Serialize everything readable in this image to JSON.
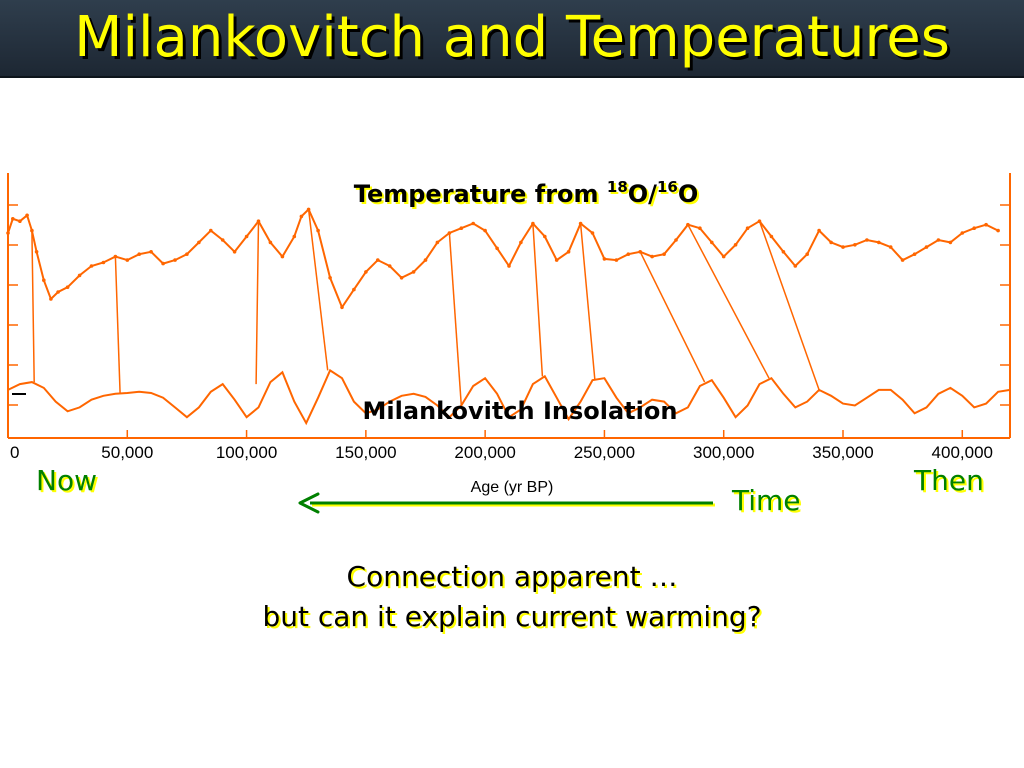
{
  "slide": {
    "title": "Milankovitch and Temperatures",
    "now_label": "Now",
    "then_label": "Then",
    "time_label": "Time",
    "caption_line1": "Connection apparent …",
    "caption_line2": "but can it explain current warming?"
  },
  "chart_data": {
    "type": "line",
    "title_parts": {
      "prefix": "Temperature from ",
      "sup1": "18",
      "mid": "O/",
      "sup2": "16",
      "suffix": "O"
    },
    "lower_label": "Milankovitch Insolation",
    "xlabel": "Age (yr BP)",
    "xlim": [
      0,
      420000
    ],
    "x_ticks": [
      0,
      50000,
      100000,
      150000,
      200000,
      250000,
      300000,
      350000,
      400000
    ],
    "x_tick_labels": [
      "0",
      "50,000",
      "100,000",
      "150,000",
      "200,000",
      "250,000",
      "300,000",
      "350,000",
      "400,000"
    ],
    "series_color": "#ff6600",
    "series": [
      {
        "values": [
          [
            0,
            0.78
          ],
          [
            2000,
            0.9
          ],
          [
            5000,
            0.88
          ],
          [
            8000,
            0.93
          ],
          [
            10000,
            0.8
          ],
          [
            12000,
            0.62
          ],
          [
            15000,
            0.38
          ],
          [
            18000,
            0.22
          ],
          [
            21000,
            0.28
          ],
          [
            25000,
            0.32
          ],
          [
            30000,
            0.42
          ],
          [
            35000,
            0.5
          ],
          [
            40000,
            0.53
          ],
          [
            45000,
            0.58
          ],
          [
            50000,
            0.55
          ],
          [
            55000,
            0.6
          ],
          [
            60000,
            0.62
          ],
          [
            65000,
            0.52
          ],
          [
            70000,
            0.55
          ],
          [
            75000,
            0.6
          ],
          [
            80000,
            0.7
          ],
          [
            85000,
            0.8
          ],
          [
            90000,
            0.72
          ],
          [
            95000,
            0.62
          ],
          [
            100000,
            0.75
          ],
          [
            105000,
            0.88
          ],
          [
            110000,
            0.7
          ],
          [
            115000,
            0.58
          ],
          [
            120000,
            0.75
          ],
          [
            123000,
            0.92
          ],
          [
            126000,
            0.98
          ],
          [
            130000,
            0.8
          ],
          [
            135000,
            0.4
          ],
          [
            140000,
            0.15
          ],
          [
            145000,
            0.3
          ],
          [
            150000,
            0.45
          ],
          [
            155000,
            0.55
          ],
          [
            160000,
            0.5
          ],
          [
            165000,
            0.4
          ],
          [
            170000,
            0.45
          ],
          [
            175000,
            0.55
          ],
          [
            180000,
            0.7
          ],
          [
            185000,
            0.78
          ],
          [
            190000,
            0.82
          ],
          [
            195000,
            0.86
          ],
          [
            200000,
            0.8
          ],
          [
            205000,
            0.65
          ],
          [
            210000,
            0.5
          ],
          [
            215000,
            0.7
          ],
          [
            220000,
            0.86
          ],
          [
            225000,
            0.75
          ],
          [
            230000,
            0.55
          ],
          [
            235000,
            0.62
          ],
          [
            240000,
            0.86
          ],
          [
            245000,
            0.78
          ],
          [
            250000,
            0.56
          ],
          [
            255000,
            0.55
          ],
          [
            260000,
            0.6
          ],
          [
            265000,
            0.62
          ],
          [
            270000,
            0.58
          ],
          [
            275000,
            0.6
          ],
          [
            280000,
            0.72
          ],
          [
            285000,
            0.85
          ],
          [
            290000,
            0.82
          ],
          [
            295000,
            0.7
          ],
          [
            300000,
            0.58
          ],
          [
            305000,
            0.68
          ],
          [
            310000,
            0.82
          ],
          [
            315000,
            0.88
          ],
          [
            320000,
            0.75
          ],
          [
            325000,
            0.62
          ],
          [
            330000,
            0.5
          ],
          [
            335000,
            0.6
          ],
          [
            340000,
            0.8
          ],
          [
            345000,
            0.7
          ],
          [
            350000,
            0.66
          ],
          [
            355000,
            0.68
          ],
          [
            360000,
            0.72
          ],
          [
            365000,
            0.7
          ],
          [
            370000,
            0.66
          ],
          [
            375000,
            0.55
          ],
          [
            380000,
            0.6
          ],
          [
            385000,
            0.66
          ],
          [
            390000,
            0.72
          ],
          [
            395000,
            0.7
          ],
          [
            400000,
            0.78
          ],
          [
            405000,
            0.82
          ],
          [
            410000,
            0.85
          ],
          [
            415000,
            0.8
          ]
        ]
      },
      {
        "values": [
          [
            0,
            -0.1
          ],
          [
            5000,
            0.05
          ],
          [
            10000,
            0.1
          ],
          [
            15000,
            -0.05
          ],
          [
            20000,
            -0.4
          ],
          [
            25000,
            -0.65
          ],
          [
            30000,
            -0.55
          ],
          [
            35000,
            -0.35
          ],
          [
            40000,
            -0.25
          ],
          [
            45000,
            -0.2
          ],
          [
            50000,
            -0.18
          ],
          [
            55000,
            -0.15
          ],
          [
            60000,
            -0.18
          ],
          [
            65000,
            -0.3
          ],
          [
            70000,
            -0.55
          ],
          [
            75000,
            -0.8
          ],
          [
            80000,
            -0.55
          ],
          [
            85000,
            -0.15
          ],
          [
            90000,
            0.05
          ],
          [
            95000,
            -0.35
          ],
          [
            100000,
            -0.8
          ],
          [
            105000,
            -0.55
          ],
          [
            110000,
            0.1
          ],
          [
            115000,
            0.35
          ],
          [
            120000,
            -0.4
          ],
          [
            125000,
            -0.95
          ],
          [
            130000,
            -0.3
          ],
          [
            135000,
            0.4
          ],
          [
            140000,
            0.2
          ],
          [
            145000,
            -0.4
          ],
          [
            150000,
            -0.7
          ],
          [
            155000,
            -0.6
          ],
          [
            160000,
            -0.4
          ],
          [
            165000,
            -0.25
          ],
          [
            170000,
            -0.2
          ],
          [
            175000,
            -0.28
          ],
          [
            180000,
            -0.5
          ],
          [
            185000,
            -0.8
          ],
          [
            190000,
            -0.5
          ],
          [
            195000,
            0.0
          ],
          [
            200000,
            0.2
          ],
          [
            205000,
            -0.2
          ],
          [
            210000,
            -0.8
          ],
          [
            215000,
            -0.6
          ],
          [
            220000,
            0.05
          ],
          [
            225000,
            0.25
          ],
          [
            230000,
            -0.3
          ],
          [
            235000,
            -0.85
          ],
          [
            240000,
            -0.4
          ],
          [
            245000,
            0.15
          ],
          [
            250000,
            0.2
          ],
          [
            255000,
            -0.3
          ],
          [
            260000,
            -0.7
          ],
          [
            265000,
            -0.55
          ],
          [
            270000,
            -0.35
          ],
          [
            275000,
            -0.4
          ],
          [
            280000,
            -0.7
          ],
          [
            285000,
            -0.55
          ],
          [
            290000,
            0.0
          ],
          [
            295000,
            0.15
          ],
          [
            300000,
            -0.3
          ],
          [
            305000,
            -0.8
          ],
          [
            310000,
            -0.5
          ],
          [
            315000,
            0.05
          ],
          [
            320000,
            0.2
          ],
          [
            325000,
            -0.2
          ],
          [
            330000,
            -0.55
          ],
          [
            335000,
            -0.4
          ],
          [
            340000,
            -0.1
          ],
          [
            345000,
            -0.25
          ],
          [
            350000,
            -0.45
          ],
          [
            355000,
            -0.5
          ],
          [
            360000,
            -0.3
          ],
          [
            365000,
            -0.1
          ],
          [
            370000,
            -0.1
          ],
          [
            375000,
            -0.35
          ],
          [
            380000,
            -0.7
          ],
          [
            385000,
            -0.55
          ],
          [
            390000,
            -0.2
          ],
          [
            395000,
            -0.05
          ],
          [
            400000,
            -0.25
          ],
          [
            405000,
            -0.55
          ],
          [
            410000,
            -0.45
          ],
          [
            415000,
            -0.15
          ],
          [
            420000,
            -0.1
          ]
        ]
      }
    ],
    "connectors": [
      [
        [
          11000,
          0.1
        ],
        [
          10000,
          0.8
        ]
      ],
      [
        [
          47000,
          -0.2
        ],
        [
          45000,
          0.58
        ]
      ],
      [
        [
          104000,
          0.05
        ],
        [
          105000,
          0.88
        ]
      ],
      [
        [
          134000,
          0.4
        ],
        [
          126000,
          0.98
        ]
      ],
      [
        [
          190000,
          -0.5
        ],
        [
          185000,
          0.78
        ]
      ],
      [
        [
          224000,
          0.25
        ],
        [
          220000,
          0.86
        ]
      ],
      [
        [
          246000,
          0.15
        ],
        [
          240000,
          0.86
        ]
      ],
      [
        [
          292000,
          0.1
        ],
        [
          265000,
          0.62
        ]
      ],
      [
        [
          319000,
          0.2
        ],
        [
          285000,
          0.85
        ]
      ],
      [
        [
          340000,
          -0.1
        ],
        [
          315000,
          0.88
        ]
      ]
    ]
  }
}
